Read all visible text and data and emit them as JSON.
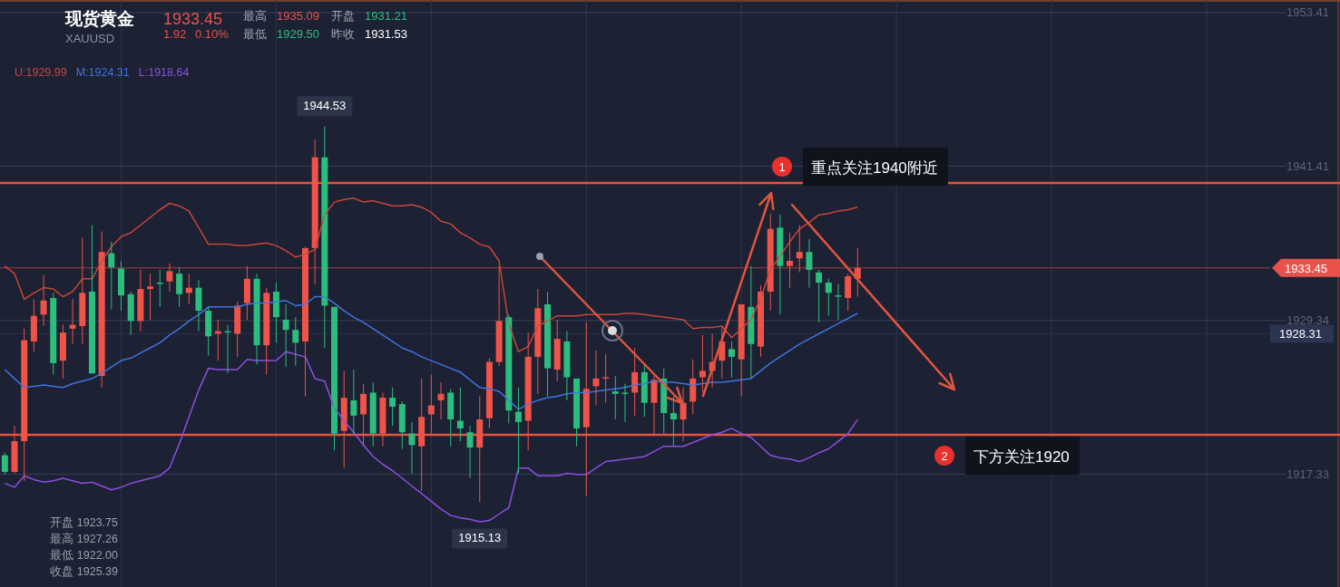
{
  "chart_data": [
    {
      "type": "candlestick",
      "title": "现货黄金",
      "subtitle": "XAUUSD",
      "categories": [
        null,
        null,
        null,
        null,
        null,
        null,
        null,
        null,
        null,
        null,
        null,
        null,
        null,
        null,
        null,
        null,
        null,
        null,
        null,
        null,
        null,
        null,
        null,
        null,
        null,
        null,
        null,
        null,
        null,
        null,
        null,
        null,
        null,
        null,
        null,
        null,
        null,
        null,
        null,
        null,
        null,
        null,
        null,
        null,
        null,
        null,
        null,
        null,
        null,
        null,
        null,
        null,
        null,
        null,
        null,
        null,
        null,
        null,
        null,
        null,
        null,
        null,
        null,
        null,
        null,
        null,
        null,
        null,
        null,
        null,
        null,
        null,
        null,
        null,
        null,
        null,
        null,
        null,
        null,
        null,
        null,
        null,
        null,
        null,
        null,
        null,
        null,
        null,
        null,
        null,
        null,
        null,
        null,
        null,
        null,
        null,
        null,
        null,
        null,
        null,
        null,
        null,
        null,
        null,
        null,
        null,
        null,
        null,
        null,
        null,
        null,
        null,
        null,
        null,
        null,
        null,
        null,
        null,
        null,
        null,
        null,
        null,
        null,
        null,
        null,
        null,
        null,
        null,
        null,
        null,
        null,
        null
      ],
      "ylim": [
        1908.5,
        1954.4
      ],
      "yticks": [
        1917.33,
        1929.34,
        1941.41,
        1953.41
      ],
      "tick_labels": "y",
      "grid": true,
      "ohlc": [
        [
          1918.8,
          1919.0,
          1917.3,
          1917.5
        ],
        [
          1917.5,
          1921.1,
          1917.4,
          1919.9
        ],
        [
          1919.9,
          1928.7,
          1916.8,
          1927.8
        ],
        [
          1927.7,
          1931.0,
          1926.9,
          1929.7
        ],
        [
          1929.8,
          1932.9,
          1928.9,
          1930.9
        ],
        [
          1931.1,
          1931.5,
          1925.1,
          1926.0
        ],
        [
          1926.2,
          1929.0,
          1924.8,
          1928.4
        ],
        [
          1928.7,
          1931.0,
          1927.5,
          1929.0
        ],
        [
          1928.9,
          1935.8,
          1927.5,
          1931.5
        ],
        [
          1931.6,
          1936.8,
          1925.2,
          1925.2
        ],
        [
          1925.0,
          1936.3,
          1924.1,
          1934.7
        ],
        [
          1934.6,
          1935.5,
          1930.2,
          1933.5
        ],
        [
          1933.4,
          1934.0,
          1930.1,
          1931.3
        ],
        [
          1931.4,
          1931.6,
          1928.2,
          1929.3
        ],
        [
          1929.3,
          1933.3,
          1928.5,
          1931.8
        ],
        [
          1931.8,
          1933.0,
          1929.4,
          1932.0
        ],
        [
          1932.3,
          1933.3,
          1930.4,
          1932.2
        ],
        [
          1932.4,
          1933.8,
          1931.6,
          1933.2
        ],
        [
          1933.0,
          1933.5,
          1930.4,
          1931.4
        ],
        [
          1931.5,
          1933.0,
          1930.6,
          1931.9
        ],
        [
          1931.9,
          1932.5,
          1928.5,
          1930.1
        ],
        [
          1930.1,
          1930.4,
          1926.6,
          1928.1
        ],
        [
          1928.3,
          1929.4,
          1926.2,
          1928.5
        ],
        [
          1928.5,
          1929.0,
          1925.2,
          1928.4
        ],
        [
          1928.3,
          1930.8,
          1926.5,
          1930.5
        ],
        [
          1930.7,
          1933.6,
          1929.4,
          1932.6
        ],
        [
          1932.6,
          1933.0,
          1925.9,
          1927.4
        ],
        [
          1927.4,
          1931.9,
          1925.1,
          1931.5
        ],
        [
          1931.6,
          1932.3,
          1927.6,
          1929.6
        ],
        [
          1929.4,
          1930.6,
          1925.7,
          1928.6
        ],
        [
          1928.6,
          1929.6,
          1925.8,
          1927.6
        ],
        [
          1927.7,
          1935.1,
          1923.4,
          1935.0
        ],
        [
          1935.0,
          1943.5,
          1932.2,
          1942.1
        ],
        [
          1942.1,
          1944.53,
          1927.2,
          1930.5
        ],
        [
          1930.4,
          1930.4,
          1919.2,
          1920.5
        ],
        [
          1920.7,
          1925.4,
          1917.8,
          1923.3
        ],
        [
          1923.1,
          1925.5,
          1920.5,
          1921.9
        ],
        [
          1922.0,
          1924.4,
          1919.5,
          1923.6
        ],
        [
          1923.7,
          1924.5,
          1919.5,
          1920.5
        ],
        [
          1920.5,
          1923.7,
          1919.5,
          1923.3
        ],
        [
          1923.3,
          1924.1,
          1921.1,
          1922.6
        ],
        [
          1922.8,
          1923.0,
          1919.3,
          1920.6
        ],
        [
          1920.5,
          1921.4,
          1917.4,
          1919.6
        ],
        [
          1919.5,
          1924.8,
          1916.0,
          1921.8
        ],
        [
          1922.0,
          1925.1,
          1920.4,
          1922.7
        ],
        [
          1923.1,
          1924.5,
          1921.6,
          1923.6
        ],
        [
          1923.7,
          1924.0,
          1919.5,
          1921.6
        ],
        [
          1921.5,
          1924.1,
          1919.9,
          1920.9
        ],
        [
          1920.6,
          1921.1,
          1917.0,
          1919.4
        ],
        [
          1919.4,
          1923.4,
          1915.13,
          1921.6
        ],
        [
          1921.7,
          1926.4,
          1920.9,
          1926.1
        ],
        [
          1926.1,
          1933.6,
          1925.8,
          1929.3
        ],
        [
          1929.6,
          1929.8,
          1921.3,
          1922.3
        ],
        [
          1922.2,
          1924.1,
          1917.4,
          1921.4
        ],
        [
          1921.5,
          1928.4,
          1919.2,
          1926.5
        ],
        [
          1926.5,
          1931.8,
          1923.6,
          1930.3
        ],
        [
          1930.6,
          1931.6,
          1923.4,
          1925.6
        ],
        [
          1925.5,
          1929.4,
          1924.6,
          1927.9
        ],
        [
          1927.7,
          1928.5,
          1923.1,
          1924.9
        ],
        [
          1924.8,
          1924.8,
          1919.5,
          1920.9
        ],
        [
          1921.0,
          1929.2,
          1915.6,
          1924.0
        ],
        [
          1924.2,
          1927.0,
          1922.7,
          1924.8
        ],
        [
          1924.8,
          1926.7,
          1922.9,
          1924.9
        ],
        [
          1923.8,
          1925.0,
          1921.6,
          1923.6
        ],
        [
          1923.7,
          1924.4,
          1921.4,
          1923.6
        ],
        [
          1923.7,
          1927.2,
          1921.9,
          1925.3
        ],
        [
          1925.3,
          1925.9,
          1921.8,
          1922.9
        ],
        [
          1922.9,
          1925.1,
          1920.5,
          1924.7
        ],
        [
          1924.8,
          1925.6,
          1920.5,
          1922.1
        ],
        [
          1922.1,
          1923.4,
          1919.5,
          1921.6
        ],
        [
          1921.6,
          1924.1,
          1919.9,
          1922.9
        ],
        [
          1923.0,
          1926.3,
          1922.0,
          1924.8
        ],
        [
          1924.9,
          1928.2,
          1923.7,
          1925.4
        ],
        [
          1925.4,
          1928.3,
          1924.1,
          1926.1
        ],
        [
          1926.2,
          1928.9,
          1924.8,
          1927.7
        ],
        [
          1927.1,
          1927.7,
          1924.9,
          1926.5
        ],
        [
          1926.3,
          1930.6,
          1923.4,
          1930.6
        ],
        [
          1930.4,
          1933.6,
          1924.8,
          1927.5
        ],
        [
          1927.3,
          1932.1,
          1926.5,
          1931.6
        ],
        [
          1931.6,
          1937.7,
          1930.1,
          1936.5
        ],
        [
          1936.6,
          1937.6,
          1929.8,
          1933.6
        ],
        [
          1933.6,
          1936.2,
          1931.9,
          1934.0
        ],
        [
          1934.2,
          1936.8,
          1933.1,
          1934.7
        ],
        [
          1934.7,
          1935.7,
          1931.9,
          1933.3
        ],
        [
          1933.1,
          1933.3,
          1929.2,
          1932.3
        ],
        [
          1932.3,
          1932.6,
          1929.7,
          1931.5
        ],
        [
          1931.3,
          1932.2,
          1929.4,
          1931.2
        ],
        [
          1931.1,
          1933.0,
          1930.1,
          1932.8
        ],
        [
          1932.6,
          1935.0,
          1931.2,
          1933.45
        ],
        null,
        null,
        null,
        null,
        null,
        null,
        null,
        null,
        null,
        null,
        null,
        null,
        null,
        null,
        null,
        null,
        null,
        null,
        null,
        null,
        null,
        null,
        null,
        null,
        null,
        null,
        null,
        null,
        null,
        null,
        null,
        null,
        null,
        null,
        null,
        null,
        null,
        null,
        null,
        null,
        null,
        null,
        null
      ],
      "ref_lines": [
        {
          "axis": "y",
          "value": 1940.1,
          "label": "重点关注1940附近",
          "color": "#e8513f"
        },
        {
          "axis": "y",
          "value": 1920.4,
          "label": "下方关注1920",
          "color": "#e8513f"
        },
        {
          "axis": "y",
          "value": 1933.45,
          "label": "1933.45",
          "color": "#9c3f3c"
        },
        {
          "axis": "y",
          "value": 1928.31,
          "label": "1928.31",
          "color": "#2a3248"
        }
      ],
      "annotations": [
        "1933.45",
        "1.92",
        "0.10%",
        "最高",
        "1935.09",
        "开盘",
        "1931.21",
        "最低",
        "1929.50",
        "昨收",
        "1931.53",
        "开盘 1923.75",
        "最高 1927.26",
        "最低 1922.00",
        "收盘 1925.39",
        "1",
        "2",
        {
          "text": "1944.53",
          "y": 1944.53
        },
        {
          "text": "1915.13",
          "y": 1915.13
        }
      ]
    },
    {
      "type": "line",
      "categories": [
        null,
        null,
        null,
        null,
        null,
        null,
        null,
        null,
        null,
        null,
        null,
        null,
        null,
        null,
        null,
        null,
        null,
        null,
        null,
        null,
        null,
        null,
        null,
        null,
        null,
        null,
        null,
        null,
        null,
        null,
        null,
        null,
        null,
        null,
        null,
        null,
        null,
        null,
        null,
        null,
        null,
        null,
        null,
        null,
        null,
        null,
        null,
        null,
        null,
        null,
        null,
        null,
        null,
        null,
        null,
        null,
        null,
        null,
        null,
        null,
        null,
        null,
        null,
        null,
        null,
        null,
        null,
        null,
        null,
        null,
        null,
        null,
        null,
        null,
        null,
        null,
        null,
        null,
        null,
        null,
        null,
        null,
        null,
        null,
        null,
        null,
        null,
        null,
        null,
        null,
        null,
        null,
        null,
        null,
        null,
        null,
        null,
        null,
        null,
        null,
        null,
        null,
        null,
        null,
        null,
        null,
        null,
        null,
        null,
        null,
        null,
        null,
        null,
        null,
        null,
        null,
        null,
        null,
        null,
        null,
        null,
        null,
        null,
        null,
        null,
        null,
        null,
        null,
        null,
        null,
        null,
        null
      ],
      "ylim": [
        1908.5,
        1954.4
      ],
      "yticks": [
        1917.33,
        1929.34,
        1941.41,
        1953.41
      ],
      "tick_labels": false,
      "series": [
        {
          "name": "U:1929.99",
          "color": "#c9453a",
          "values": [
            1933.6,
            1933.0,
            1931.0,
            1931.5,
            1931.9,
            1931.8,
            1931.2,
            1931.6,
            1932.6,
            1932.6,
            1934.0,
            1935.1,
            1935.9,
            1936.2,
            1936.8,
            1937.4,
            1938.0,
            1938.5,
            1938.3,
            1937.9,
            1936.6,
            1935.3,
            1935.3,
            1935.3,
            1935.2,
            1935.2,
            1935.3,
            1935.4,
            1935.2,
            1934.8,
            1934.3,
            1934.5,
            1934.9,
            1937.6,
            1938.6,
            1938.8,
            1938.9,
            1938.6,
            1938.7,
            1938.5,
            1938.3,
            1938.3,
            1938.4,
            1938.2,
            1937.8,
            1937.1,
            1936.9,
            1936.2,
            1935.8,
            1935.3,
            1935.1,
            1934.0,
            1929.1,
            1926.9,
            1927.3,
            1928.9,
            1929.3,
            1929.7,
            1929.7,
            1929.7,
            1929.8,
            1929.8,
            1929.8,
            1929.8,
            1929.9,
            1929.9,
            1929.8,
            1929.7,
            1929.6,
            1929.5,
            1929.4,
            1928.7,
            1928.8,
            1928.8,
            1928.9,
            1928.0,
            1928.7,
            1929.4,
            1931.1,
            1933.3,
            1934.4,
            1935.5,
            1936.5,
            1937.0,
            1937.6,
            1937.7,
            1937.9,
            1938.0,
            1938.2,
            null,
            null,
            null,
            null,
            null,
            null,
            null,
            null,
            null,
            null,
            null,
            null,
            null,
            null,
            null,
            null,
            null,
            null,
            null,
            null,
            null,
            null,
            null,
            null,
            null,
            null,
            null,
            null,
            null,
            null,
            null,
            null,
            null,
            null,
            null,
            null,
            null,
            null,
            null,
            null,
            null,
            null,
            null
          ]
        }
      ]
    },
    {
      "type": "line",
      "categories": [
        null,
        null,
        null,
        null,
        null,
        null,
        null,
        null,
        null,
        null,
        null,
        null,
        null,
        null,
        null,
        null,
        null,
        null,
        null,
        null,
        null,
        null,
        null,
        null,
        null,
        null,
        null,
        null,
        null,
        null,
        null,
        null,
        null,
        null,
        null,
        null,
        null,
        null,
        null,
        null,
        null,
        null,
        null,
        null,
        null,
        null,
        null,
        null,
        null,
        null,
        null,
        null,
        null,
        null,
        null,
        null,
        null,
        null,
        null,
        null,
        null,
        null,
        null,
        null,
        null,
        null,
        null,
        null,
        null,
        null,
        null,
        null,
        null,
        null,
        null,
        null,
        null,
        null,
        null,
        null,
        null,
        null,
        null,
        null,
        null,
        null,
        null,
        null,
        null,
        null,
        null,
        null,
        null,
        null,
        null,
        null,
        null,
        null,
        null,
        null,
        null,
        null,
        null,
        null,
        null,
        null,
        null,
        null,
        null,
        null,
        null,
        null,
        null,
        null,
        null,
        null,
        null,
        null,
        null,
        null,
        null,
        null,
        null,
        null,
        null,
        null,
        null,
        null,
        null,
        null,
        null,
        null
      ],
      "ylim": [
        1908.5,
        1954.4
      ],
      "yticks": [
        1917.33,
        1929.34,
        1941.41,
        1953.41
      ],
      "tick_labels": false,
      "series": [
        {
          "name": "M:1924.31",
          "color": "#3f73e0",
          "values": [
            1925.5,
            1924.8,
            1924.1,
            1924.2,
            1924.3,
            1924.2,
            1924.1,
            1924.4,
            1924.6,
            1924.8,
            1925.2,
            1925.7,
            1926.2,
            1926.4,
            1926.8,
            1927.2,
            1927.6,
            1928.2,
            1928.7,
            1929.3,
            1929.8,
            1930.4,
            1930.4,
            1930.4,
            1930.4,
            1930.6,
            1930.7,
            1930.7,
            1930.8,
            1930.9,
            1930.5,
            1930.6,
            1931.2,
            1931.2,
            1930.7,
            1930.1,
            1929.6,
            1929.2,
            1928.7,
            1928.2,
            1927.7,
            1927.2,
            1926.9,
            1926.5,
            1926.2,
            1925.9,
            1925.6,
            1925.3,
            1924.7,
            1924.1,
            1924.0,
            1923.8,
            1923.1,
            1922.4,
            1922.8,
            1923.1,
            1923.3,
            1923.4,
            1923.6,
            1923.7,
            1923.7,
            1923.8,
            1923.9,
            1924.0,
            1924.1,
            1924.3,
            1924.4,
            1924.6,
            1924.5,
            1924.5,
            1924.4,
            1924.3,
            1924.4,
            1924.5,
            1924.5,
            1924.6,
            1924.7,
            1924.8,
            1925.4,
            1926.0,
            1926.5,
            1927.0,
            1927.5,
            1927.9,
            1928.3,
            1928.7,
            1929.1,
            1929.5,
            1929.9,
            null,
            null,
            null,
            null,
            null,
            null,
            null,
            null,
            null,
            null,
            null,
            null,
            null,
            null,
            null,
            null,
            null,
            null,
            null,
            null,
            null,
            null,
            null,
            null,
            null,
            null,
            null,
            null,
            null,
            null,
            null,
            null,
            null,
            null,
            null,
            null,
            null,
            null,
            null,
            null,
            null,
            null,
            null
          ]
        }
      ]
    },
    {
      "type": "line",
      "categories": [
        null,
        null,
        null,
        null,
        null,
        null,
        null,
        null,
        null,
        null,
        null,
        null,
        null,
        null,
        null,
        null,
        null,
        null,
        null,
        null,
        null,
        null,
        null,
        null,
        null,
        null,
        null,
        null,
        null,
        null,
        null,
        null,
        null,
        null,
        null,
        null,
        null,
        null,
        null,
        null,
        null,
        null,
        null,
        null,
        null,
        null,
        null,
        null,
        null,
        null,
        null,
        null,
        null,
        null,
        null,
        null,
        null,
        null,
        null,
        null,
        null,
        null,
        null,
        null,
        null,
        null,
        null,
        null,
        null,
        null,
        null,
        null,
        null,
        null,
        null,
        null,
        null,
        null,
        null,
        null,
        null,
        null,
        null,
        null,
        null,
        null,
        null,
        null,
        null,
        null,
        null,
        null,
        null,
        null,
        null,
        null,
        null,
        null,
        null,
        null,
        null,
        null,
        null,
        null,
        null,
        null,
        null,
        null,
        null,
        null,
        null,
        null,
        null,
        null,
        null,
        null,
        null,
        null,
        null,
        null,
        null,
        null,
        null,
        null,
        null,
        null,
        null,
        null,
        null,
        null,
        null,
        null
      ],
      "ylim": [
        1908.5,
        1954.4
      ],
      "yticks": [
        1917.33,
        1929.34,
        1941.41,
        1953.41
      ],
      "tick_labels": false,
      "series": [
        {
          "name": "L:1918.64",
          "color": "#8a4fe0",
          "values": [
            1916.6,
            1916.3,
            1917.2,
            1916.9,
            1916.7,
            1916.8,
            1917.0,
            1916.8,
            1916.6,
            1916.7,
            1916.4,
            1916.1,
            1916.3,
            1916.6,
            1916.8,
            1917.0,
            1917.2,
            1917.8,
            1919.7,
            1921.8,
            1923.9,
            1925.6,
            1925.5,
            1925.5,
            1925.5,
            1926.3,
            1926.2,
            1926.2,
            1926.2,
            1926.9,
            1926.7,
            1926.5,
            1924.8,
            1924.6,
            1922.5,
            1921.5,
            1920.6,
            1919.6,
            1918.7,
            1918.1,
            1917.6,
            1917.0,
            1916.4,
            1915.8,
            1915.2,
            1914.6,
            1914.1,
            1913.9,
            1913.8,
            1913.6,
            1913.7,
            1914.2,
            1914.7,
            1917.8,
            1917.8,
            1917.2,
            1917.2,
            1917.2,
            1917.4,
            1917.3,
            1917.3,
            1917.8,
            1918.3,
            1918.4,
            1918.5,
            1918.6,
            1918.7,
            1919.1,
            1919.5,
            1919.5,
            1919.5,
            1919.8,
            1920.1,
            1920.4,
            1920.6,
            1920.9,
            1920.5,
            1920.2,
            1919.5,
            1918.8,
            1918.6,
            1918.5,
            1918.3,
            1918.6,
            1919.0,
            1919.3,
            1919.9,
            1920.5,
            1921.6,
            null,
            null,
            null,
            null,
            null,
            null,
            null,
            null,
            null,
            null,
            null,
            null,
            null,
            null,
            null,
            null,
            null,
            null,
            null,
            null,
            null,
            null,
            null,
            null,
            null,
            null,
            null,
            null,
            null,
            null,
            null,
            null,
            null,
            null,
            null,
            null,
            null,
            null,
            null,
            null,
            null,
            null,
            null
          ]
        }
      ]
    }
  ]
}
